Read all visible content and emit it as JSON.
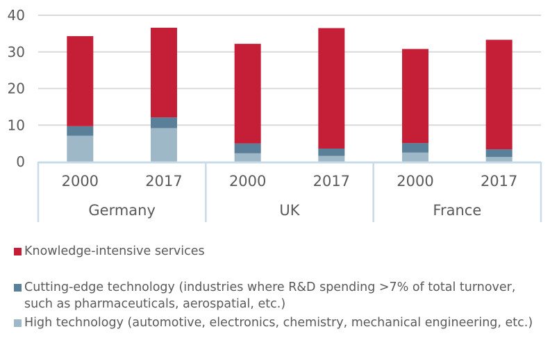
{
  "chart_data": {
    "type": "bar",
    "stacked": true,
    "categories": [
      {
        "group": "Germany",
        "year": "2000"
      },
      {
        "group": "Germany",
        "year": "2017"
      },
      {
        "group": "UK",
        "year": "2000"
      },
      {
        "group": "UK",
        "year": "2017"
      },
      {
        "group": "France",
        "year": "2000"
      },
      {
        "group": "France",
        "year": "2017"
      }
    ],
    "groups": [
      "Germany",
      "UK",
      "France"
    ],
    "years": [
      "2000",
      "2017",
      "2000",
      "2017",
      "2000",
      "2017"
    ],
    "series": [
      {
        "name": "High technology (automotive, electronics, chemistry, mechanical engineering, etc.)",
        "color": "#9fb8c8",
        "values": [
          7.1,
          9.2,
          2.3,
          1.6,
          2.5,
          1.3
        ]
      },
      {
        "name": "Cutting-edge technology (industries where R&D spending >7% of total turnover, such as pharmaceuticals, aerospatial, etc.)",
        "color": "#5a7f99",
        "values": [
          2.6,
          2.9,
          2.7,
          2.0,
          2.6,
          2.1
        ]
      },
      {
        "name": "Knowledge-intensive services",
        "color": "#c41f36",
        "values": [
          24.6,
          24.5,
          27.2,
          32.9,
          25.7,
          29.9
        ]
      }
    ],
    "ylim": [
      0,
      40
    ],
    "yticks": [
      "0",
      "10",
      "20",
      "30",
      "40"
    ],
    "grid": true,
    "legend_position": "bottom"
  },
  "legend": [
    {
      "label": "Knowledge-intensive services",
      "color": "#c41f36"
    },
    {
      "label": "Cutting-edge technology (industries where R&D spending >7% of total turnover, such as pharmaceuticals, aerospatial, etc.)",
      "color": "#5a7f99"
    },
    {
      "label": "High technology (automotive, electronics, chemistry, mechanical engineering, etc.)",
      "color": "#9fb8c8"
    }
  ]
}
